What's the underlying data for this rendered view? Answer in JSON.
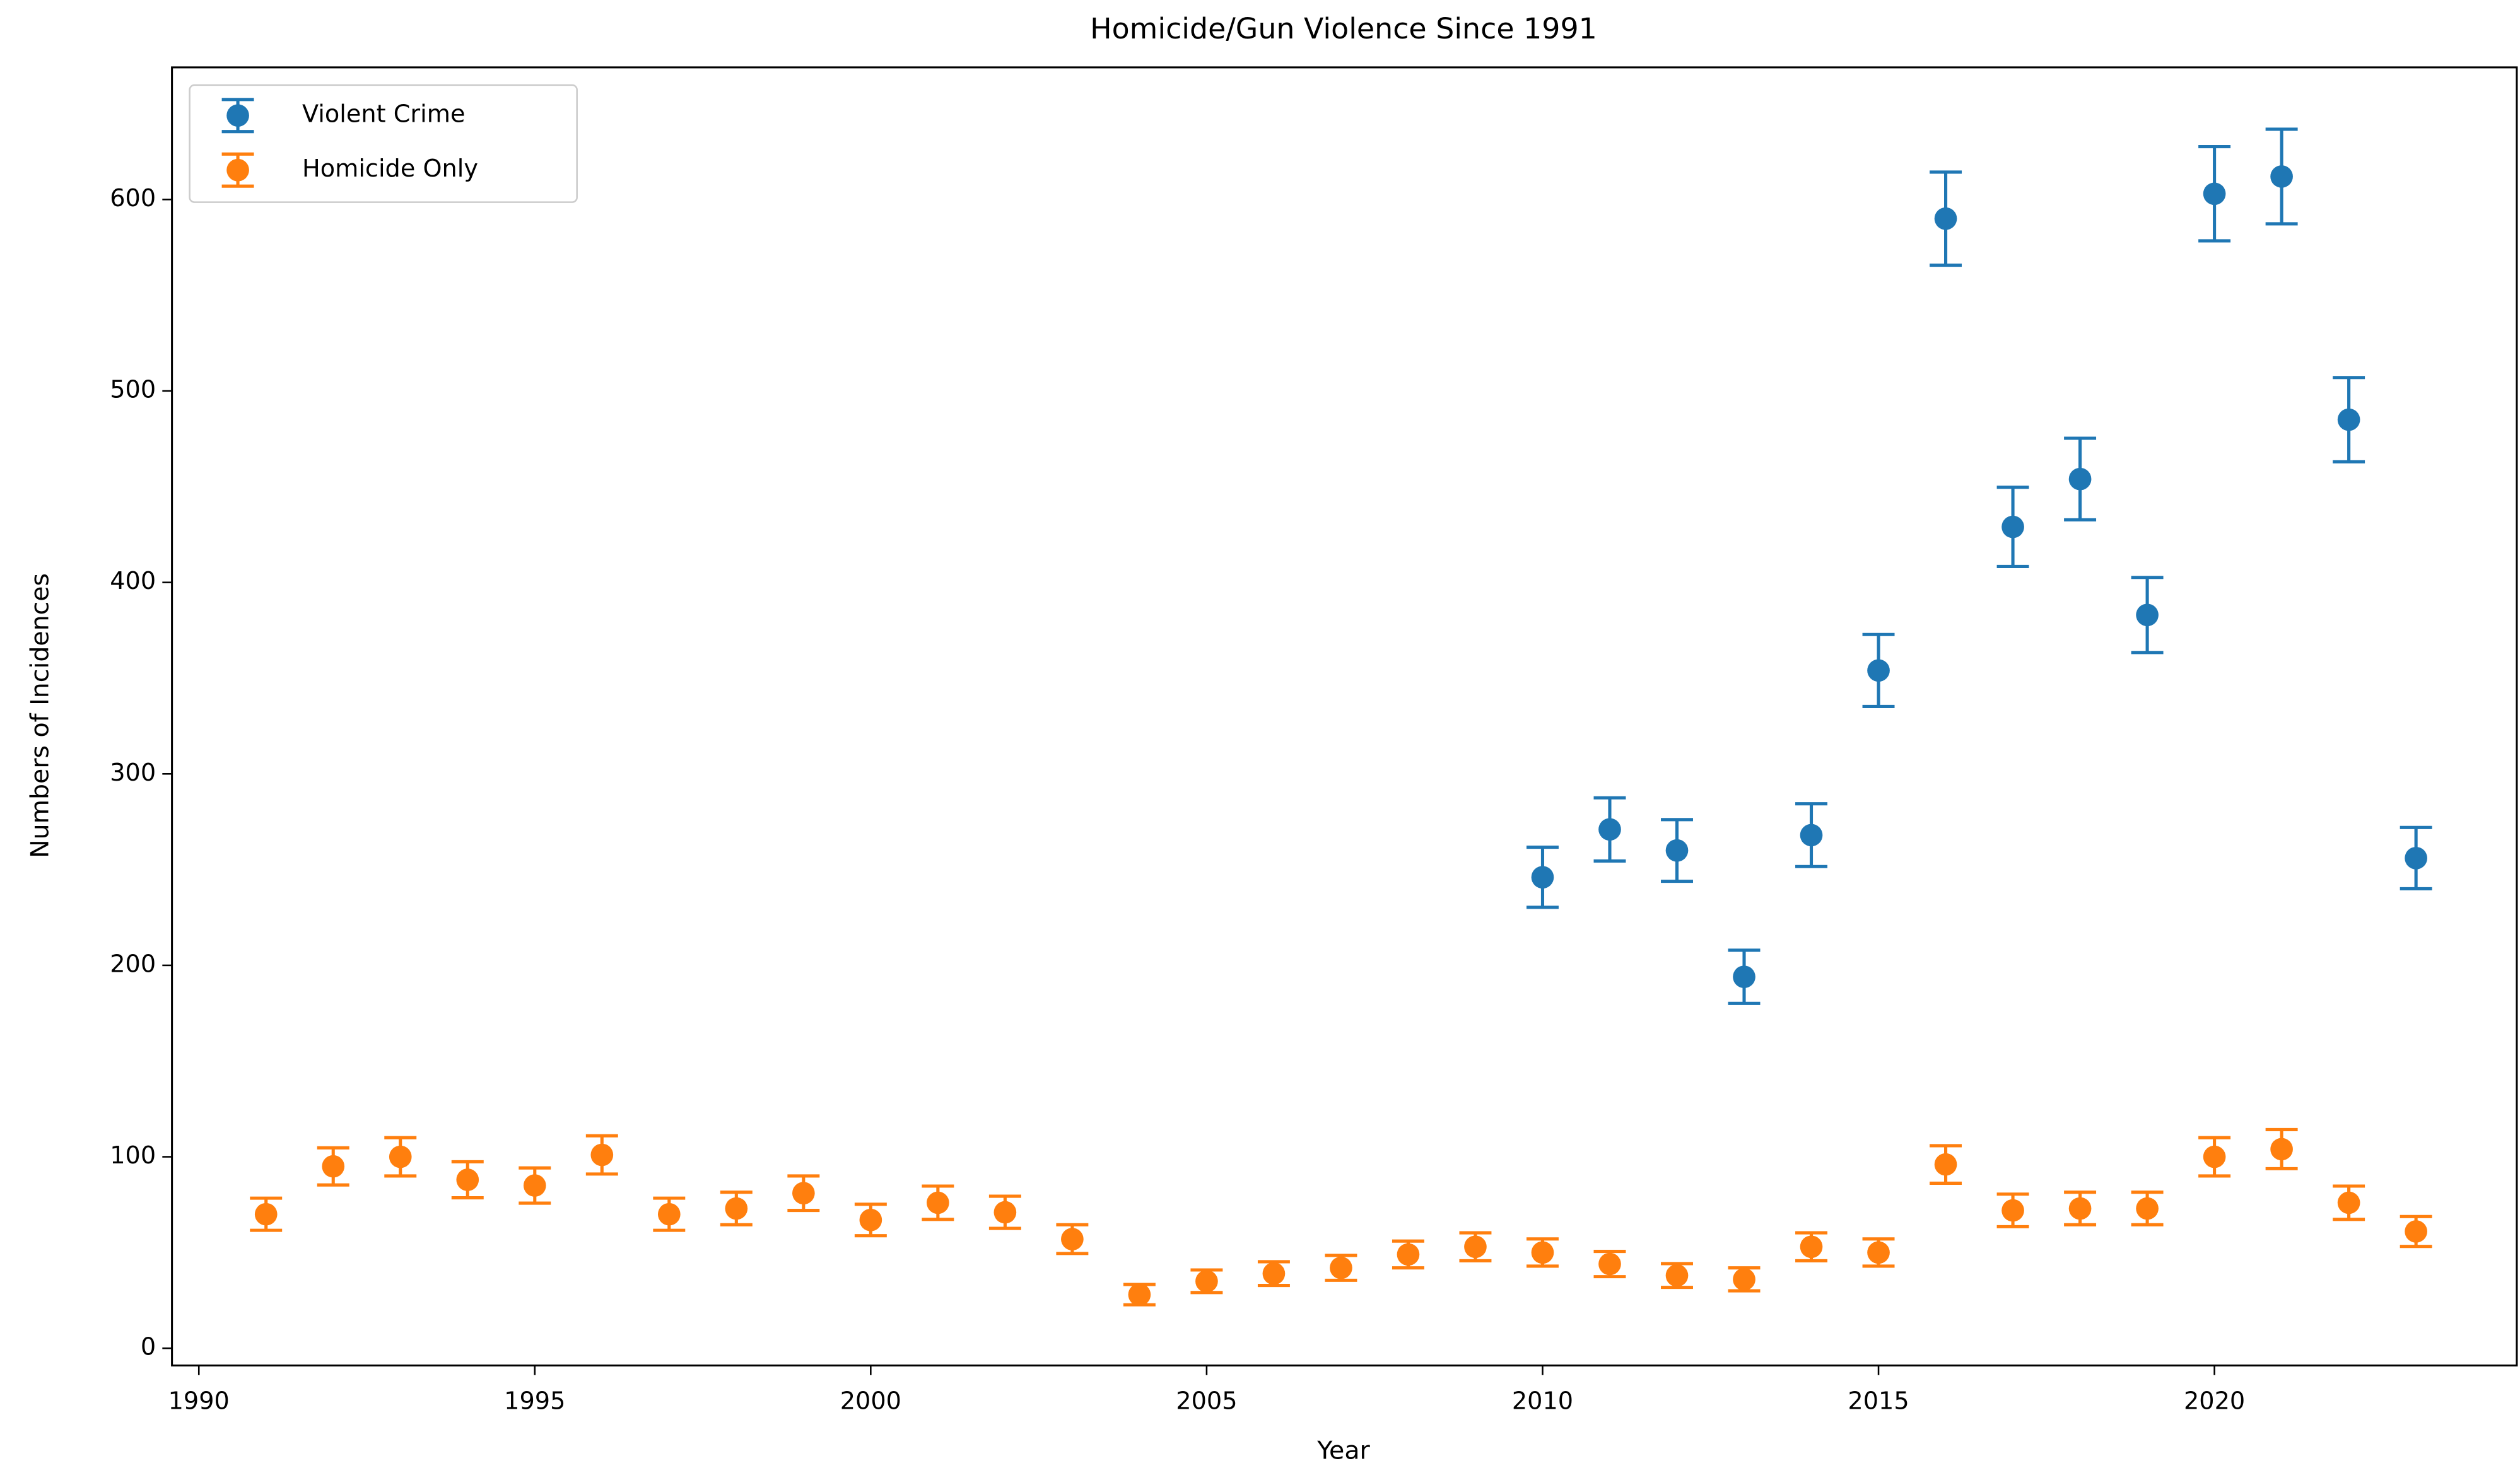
{
  "chart_data": {
    "type": "errorbar",
    "title": "Homicide/Gun Violence Since 1991",
    "x_label": "Year",
    "y_label": "Numbers of Incidences",
    "x": [
      1991,
      1992,
      1993,
      1994,
      1995,
      1996,
      1997,
      1998,
      1999,
      2000,
      2001,
      2002,
      2003,
      2004,
      2005,
      2006,
      2007,
      2008,
      2009,
      2010,
      2011,
      2012,
      2013,
      2014,
      2015,
      2016,
      2017,
      2018,
      2019,
      2020,
      2021,
      2022,
      2023
    ],
    "series": [
      {
        "name": "Violent Crime",
        "color": "#1f77b4",
        "values": [
          null,
          null,
          null,
          null,
          null,
          null,
          null,
          null,
          null,
          null,
          null,
          null,
          null,
          null,
          null,
          null,
          null,
          null,
          null,
          246,
          271,
          260,
          194,
          268,
          354,
          590,
          429,
          454,
          383,
          603,
          612,
          485,
          256
        ],
        "errors": [
          null,
          null,
          null,
          null,
          null,
          null,
          null,
          null,
          null,
          null,
          null,
          null,
          null,
          null,
          null,
          null,
          null,
          null,
          null,
          15.7,
          16.5,
          16.1,
          13.9,
          16.4,
          18.8,
          24.3,
          20.7,
          21.3,
          19.6,
          24.6,
          24.7,
          22,
          16
        ]
      },
      {
        "name": "Homicide Only",
        "color": "#ff7f0e",
        "values": [
          70,
          95,
          100,
          88,
          85,
          101,
          70,
          73,
          81,
          67,
          76,
          71,
          57,
          28,
          35,
          39,
          42,
          49,
          53,
          50,
          44,
          38,
          36,
          53,
          50,
          96,
          72,
          73,
          73,
          100,
          104,
          76,
          61
        ],
        "errors": [
          8.4,
          9.7,
          10,
          9.4,
          9.2,
          10,
          8.4,
          8.5,
          9,
          8.2,
          8.7,
          8.4,
          7.5,
          5.3,
          5.9,
          6.2,
          6.5,
          7,
          7.3,
          7.1,
          6.6,
          6.2,
          6,
          7.3,
          7.1,
          9.8,
          8.5,
          8.5,
          8.5,
          10,
          10.2,
          8.7,
          7.8
        ]
      }
    ],
    "xlim": [
      1989.6,
      2024.5
    ],
    "ylim": [
      -9,
      669
    ],
    "xticks": [
      1990,
      1995,
      2000,
      2005,
      2010,
      2015,
      2020
    ],
    "yticks": [
      0,
      100,
      200,
      300,
      400,
      500,
      600
    ],
    "legend": "upper left"
  }
}
